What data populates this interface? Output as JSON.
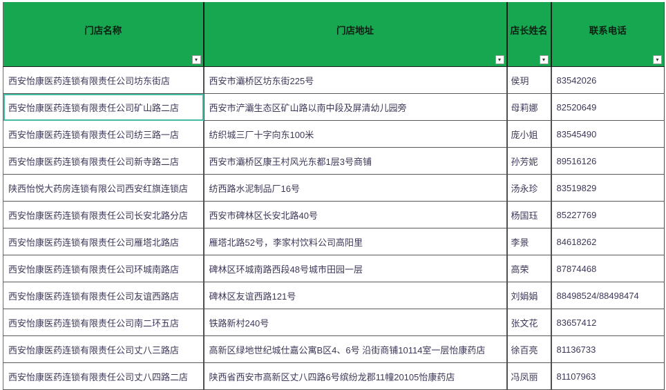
{
  "colors": {
    "header_green": "#17a750",
    "grid_line": "#4f4f4f",
    "cell_text": "#3e3758",
    "header_text": "#0b2012",
    "selection_teal": "#41bda4"
  },
  "icons": {
    "filter_dropdown": "▾"
  },
  "selection": {
    "row": 1,
    "col": 0
  },
  "table": {
    "columns": [
      {
        "key": "name",
        "label": "门店名称"
      },
      {
        "key": "address",
        "label": "门店地址"
      },
      {
        "key": "manager",
        "label": "店长姓名"
      },
      {
        "key": "phone",
        "label": "联系电话"
      }
    ],
    "rows": [
      {
        "name": "西安怡康医药连锁有限责任公司坊东街店",
        "address": "西安市灞桥区坊东街225号",
        "manager": "侯玥",
        "phone": "83542026"
      },
      {
        "name": "西安怡康医药连锁有限责任公司矿山路二店",
        "address": "西安市浐灞生态区矿山路以南中段及屏清幼儿园旁",
        "manager": "母莉娜",
        "phone": "82520649"
      },
      {
        "name": "西安怡康医药连锁有限责任公司纺三路一店",
        "address": "纺织城三厂十字向东100米",
        "manager": "庞小姐",
        "phone": "83545490"
      },
      {
        "name": "西安怡康医药连锁有限责任公司新寺路二店",
        "address": "西安市灞桥区康王村风光东都1层3号商铺",
        "manager": "孙芳妮",
        "phone": "89516126"
      },
      {
        "name": "陕西怡悦大药房连锁有限公司西安红旗连锁店",
        "address": "纺西路水泥制品厂16号",
        "manager": "汤永珍",
        "phone": "83519829"
      },
      {
        "name": "西安怡康医药连锁有限责任公司长安北路分店",
        "address": "西安市碑林区长安北路40号",
        "manager": "杨国珏",
        "phone": "85227769"
      },
      {
        "name": "西安怡康医药连锁有限责任公司雁塔北路店",
        "address": "雁塔北路52号，李家村饮料公司高阳里",
        "manager": "李景",
        "phone": "84618262"
      },
      {
        "name": "西安怡康医药连锁有限责任公司环城南路店",
        "address": "碑林区环城南路西段48号城市田园一层",
        "manager": "高荣",
        "phone": "87874468"
      },
      {
        "name": "西安怡康医药连锁有限责任公司友谊西路店",
        "address": "碑林区友谊西路121号",
        "manager": "刘娟娟",
        "phone": "88498524/88498474"
      },
      {
        "name": "西安怡康医药连锁有限责任公司南二环五店",
        "address": "铁路新村240号",
        "manager": "张文花",
        "phone": "83657412"
      },
      {
        "name": "西安怡康医药连锁有限责任公司丈八三路店",
        "address": "高新区绿地世纪城仕嘉公寓B区4、6号 沿街商铺10114室一层怡康药店",
        "manager": "徐百亮",
        "phone": "81136733"
      },
      {
        "name": "西安怡康医药连锁有限责任公司丈八四路二店",
        "address": "陕西省西安市高新区丈八四路6号缤纷龙郡11幢20105怡康药店",
        "manager": "冯凤丽",
        "phone": "81107963"
      }
    ]
  }
}
